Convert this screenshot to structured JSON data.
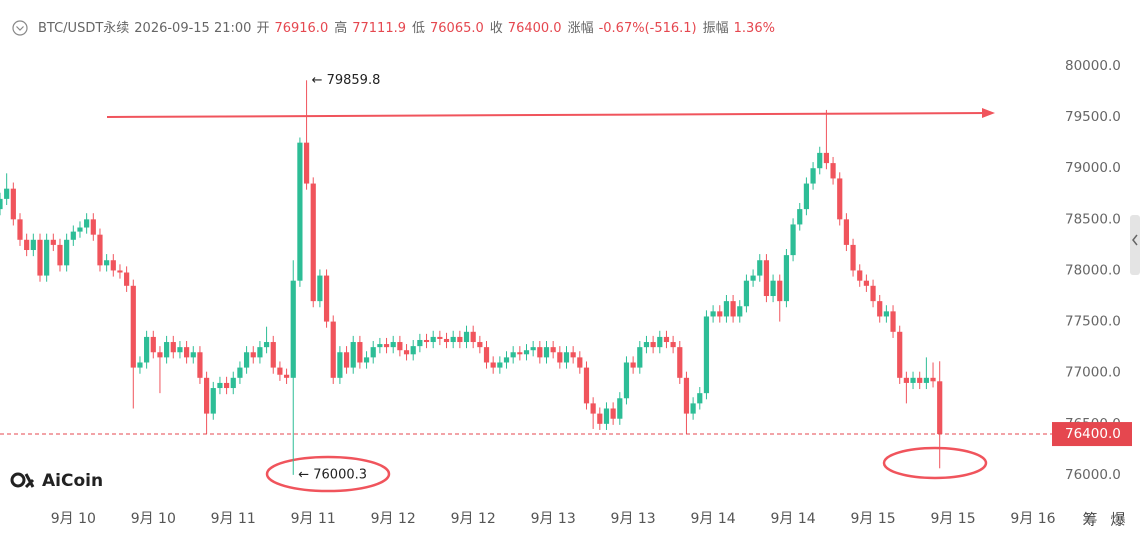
{
  "chart_data": {
    "type": "candlestick",
    "header": {
      "symbol": "BTC/USDT永续",
      "time": "2026-09-15 21:00",
      "stats": [
        {
          "label": "开",
          "value": "76916.0"
        },
        {
          "label": "高",
          "value": "77111.9"
        },
        {
          "label": "低",
          "value": "76065.0"
        },
        {
          "label": "收",
          "value": "76400.0"
        },
        {
          "label": "涨幅",
          "value": "-0.67%(-516.1)"
        },
        {
          "label": "振幅",
          "value": "1.36%"
        }
      ]
    },
    "open": [
      78600,
      78700,
      78800,
      78500,
      78300,
      78200,
      78300,
      77950,
      78300,
      78250,
      78050,
      78300,
      78380,
      78420,
      78500,
      78350,
      78050,
      78100,
      78000,
      77980,
      77850,
      77050,
      77100,
      77350,
      77200,
      77150,
      77300,
      77200,
      77250,
      77150,
      77200,
      76950,
      76600,
      76850,
      76900,
      76850,
      76950,
      77050,
      77200,
      77150,
      77250,
      77300,
      77050,
      76980,
      76950,
      77900,
      79250,
      78850,
      77700,
      77950,
      77500,
      76950,
      77200,
      77050,
      77300,
      77100,
      77150,
      77250,
      77280,
      77250,
      77300,
      77220,
      77180,
      77260,
      77320,
      77300,
      77350,
      77330,
      77300,
      77350,
      77300,
      77400,
      77300,
      77250,
      77100,
      77050,
      77100,
      77150,
      77200,
      77180,
      77220,
      77250,
      77150,
      77250,
      77200,
      77100,
      77200,
      77150,
      77050,
      76700,
      76600,
      76500,
      76650,
      76550,
      76750,
      77100,
      77050,
      77250,
      77300,
      77250,
      77350,
      77300,
      77250,
      76950,
      76600,
      76700,
      76800,
      77550,
      77600,
      77550,
      77700,
      77550,
      77650,
      77900,
      77950,
      78100,
      77750,
      77900,
      77700,
      78150,
      78450,
      78600,
      78850,
      79000,
      79150,
      79050,
      78900,
      78500,
      78250,
      78000,
      77900,
      77850,
      77700,
      77550,
      77600,
      77400,
      76950,
      76900,
      76950,
      76900,
      76950,
      76916
    ],
    "high": [
      78760,
      78950,
      78860,
      78560,
      78360,
      78360,
      78360,
      78360,
      78360,
      78310,
      78360,
      78440,
      78480,
      78560,
      78560,
      78410,
      78160,
      78160,
      78060,
      78040,
      77910,
      77160,
      77410,
      77410,
      77260,
      77360,
      77360,
      77310,
      77310,
      77260,
      77260,
      77010,
      76910,
      76960,
      76960,
      77010,
      77110,
      77260,
      77260,
      77310,
      77450,
      77360,
      77110,
      77040,
      78100,
      79300,
      79859.8,
      78910,
      78010,
      78010,
      77560,
      77260,
      77260,
      77360,
      77360,
      77210,
      77310,
      77340,
      77340,
      77360,
      77360,
      77280,
      77320,
      77380,
      77380,
      77410,
      77410,
      77390,
      77410,
      77410,
      77460,
      77460,
      77360,
      77310,
      77160,
      77160,
      77210,
      77260,
      77260,
      77280,
      77310,
      77310,
      77310,
      77310,
      77260,
      77260,
      77260,
      77210,
      77110,
      76760,
      76660,
      76710,
      76710,
      76810,
      77160,
      77160,
      77310,
      77360,
      77360,
      77410,
      77410,
      77360,
      77310,
      77010,
      76760,
      76860,
      77610,
      77660,
      77660,
      77760,
      77760,
      77710,
      77960,
      78010,
      78160,
      78160,
      77960,
      77960,
      78210,
      78510,
      78660,
      78910,
      79060,
      79210,
      79570,
      79110,
      78960,
      78560,
      78310,
      78060,
      77960,
      77910,
      77760,
      77660,
      77660,
      77460,
      77010,
      77010,
      77010,
      77150,
      77100,
      77111.9
    ],
    "low": [
      78540,
      78640,
      78440,
      78240,
      78140,
      78140,
      77890,
      77890,
      78190,
      77990,
      77990,
      78240,
      78320,
      78360,
      78290,
      77990,
      77990,
      77940,
      77920,
      77790,
      76650,
      76990,
      77040,
      77140,
      76800,
      77090,
      77140,
      77140,
      77090,
      77090,
      76890,
      76400,
      76540,
      76790,
      76790,
      76790,
      76890,
      76990,
      77090,
      77090,
      77190,
      76990,
      76920,
      76890,
      76000.3,
      77840,
      78790,
      77640,
      77640,
      77440,
      76890,
      76890,
      76990,
      76990,
      77040,
      77040,
      77090,
      77190,
      77190,
      77190,
      77160,
      77120,
      77120,
      77200,
      77240,
      77240,
      77270,
      77240,
      77240,
      77240,
      77240,
      77240,
      77190,
      77040,
      76990,
      76990,
      77040,
      77090,
      77120,
      77120,
      77160,
      77090,
      77090,
      77140,
      77040,
      77040,
      77090,
      76990,
      76640,
      76450,
      76440,
      76440,
      76490,
      76490,
      76690,
      76990,
      76990,
      77190,
      77190,
      77190,
      77240,
      77190,
      76890,
      76400,
      76540,
      76640,
      76740,
      77490,
      77490,
      77490,
      77490,
      77490,
      77590,
      77840,
      77890,
      77690,
      77690,
      77500,
      77640,
      78090,
      78390,
      78540,
      78790,
      78940,
      78990,
      78840,
      78440,
      78190,
      77940,
      77840,
      77790,
      77640,
      77490,
      77490,
      77340,
      76890,
      76700,
      76840,
      76840,
      76840,
      76856,
      76065
    ],
    "close": [
      78700,
      78800,
      78500,
      78300,
      78200,
      78300,
      77950,
      78300,
      78250,
      78050,
      78300,
      78380,
      78420,
      78500,
      78350,
      78050,
      78100,
      78000,
      77980,
      77850,
      77050,
      77100,
      77350,
      77200,
      77150,
      77300,
      77200,
      77250,
      77150,
      77200,
      76950,
      76600,
      76850,
      76900,
      76850,
      76950,
      77050,
      77200,
      77150,
      77250,
      77300,
      77050,
      76980,
      76950,
      77900,
      79250,
      78850,
      77700,
      77950,
      77500,
      76950,
      77200,
      77050,
      77300,
      77100,
      77150,
      77250,
      77280,
      77250,
      77300,
      77220,
      77180,
      77260,
      77320,
      77300,
      77350,
      77330,
      77300,
      77350,
      77300,
      77400,
      77300,
      77250,
      77100,
      77050,
      77100,
      77150,
      77200,
      77180,
      77220,
      77250,
      77150,
      77250,
      77200,
      77100,
      77200,
      77150,
      77050,
      76700,
      76600,
      76500,
      76650,
      76550,
      76750,
      77100,
      77050,
      77250,
      77300,
      77250,
      77350,
      77300,
      77250,
      76950,
      76600,
      76700,
      76800,
      77550,
      77600,
      77550,
      77700,
      77550,
      77650,
      77900,
      77950,
      78100,
      77750,
      77900,
      77700,
      78150,
      78450,
      78600,
      78850,
      79000,
      79150,
      79050,
      78900,
      78500,
      78250,
      78000,
      77900,
      77850,
      77700,
      77550,
      77600,
      77400,
      76950,
      76900,
      76950,
      76900,
      76950,
      76916,
      76400
    ],
    "up_color": "#2dbd96",
    "down_color": "#f0545c",
    "xlim": [
      0,
      158
    ],
    "xticks": [
      {
        "value": 11,
        "label": "9月 10"
      },
      {
        "value": 23,
        "label": "9月 10"
      },
      {
        "value": 35,
        "label": "9月 11"
      },
      {
        "value": 47,
        "label": "9月 11"
      },
      {
        "value": 59,
        "label": "9月 12"
      },
      {
        "value": 71,
        "label": "9月 12"
      },
      {
        "value": 83,
        "label": "9月 13"
      },
      {
        "value": 95,
        "label": "9月 13"
      },
      {
        "value": 107,
        "label": "9月 14"
      },
      {
        "value": 119,
        "label": "9月 14"
      },
      {
        "value": 131,
        "label": "9月 15"
      },
      {
        "value": 143,
        "label": "9月 15"
      },
      {
        "value": 155,
        "label": "9月 16"
      }
    ],
    "ylim": [
      75755,
      80254
    ],
    "yticks": [
      {
        "value": 76000,
        "label": "76000.0"
      },
      {
        "value": 76500,
        "label": "76500.0"
      },
      {
        "value": 77000,
        "label": "77000.0"
      },
      {
        "value": 77500,
        "label": "77500.0"
      },
      {
        "value": 78000,
        "label": "78000.0"
      },
      {
        "value": 78500,
        "label": "78500.0"
      },
      {
        "value": 79000,
        "label": "79000.0"
      },
      {
        "value": 79500,
        "label": "79500.0"
      },
      {
        "value": 80000,
        "label": "80000.0"
      }
    ],
    "price_line": {
      "value": 76400,
      "label": "76400.0",
      "color": "#e5474f"
    },
    "max_label": "← 79859.8",
    "min_label": "← 76000.3",
    "watermark": "AiCoin",
    "side_buttons": [
      "筹",
      "爆"
    ]
  }
}
